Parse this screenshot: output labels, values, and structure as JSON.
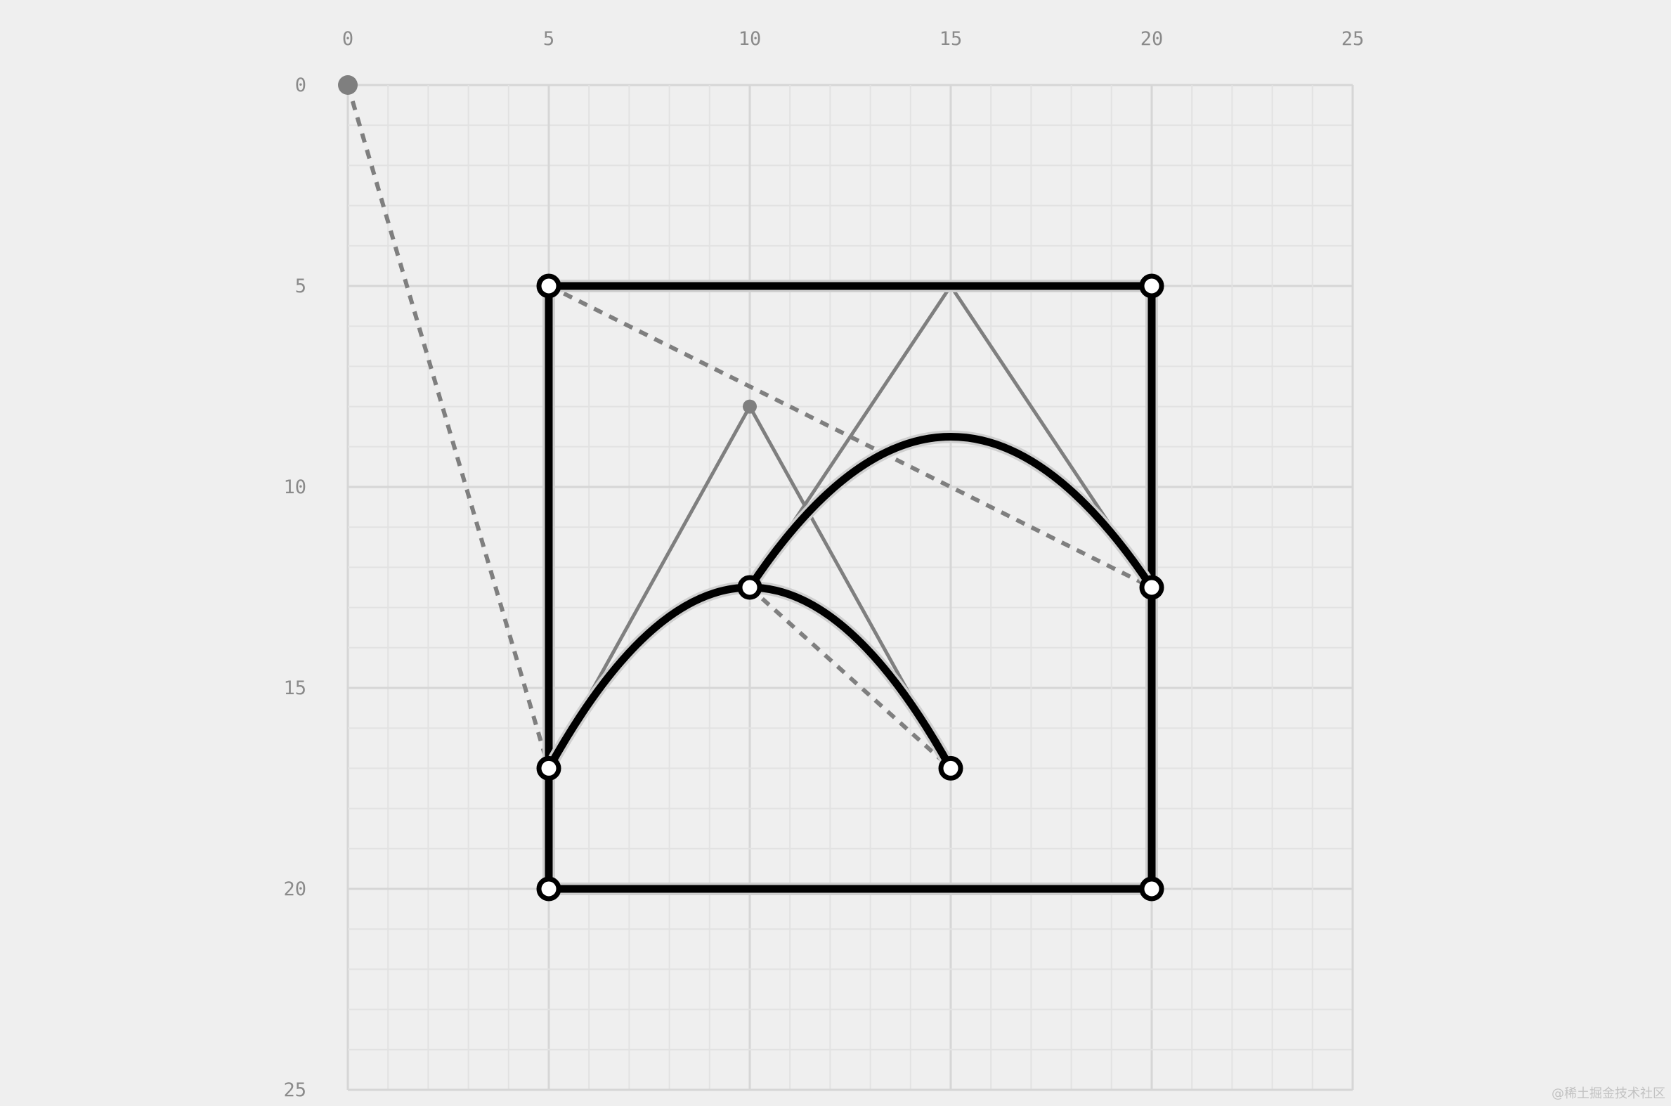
{
  "diagram": {
    "axis": {
      "min": 0,
      "max": 25,
      "major_step": 5,
      "minor_step": 1,
      "x_ticks": [
        "0",
        "5",
        "10",
        "15",
        "20",
        "25"
      ],
      "y_ticks": [
        "0",
        "5",
        "10",
        "15",
        "20",
        "25"
      ]
    },
    "colors": {
      "background": "#efefef",
      "minor_grid": "#e2e2e2",
      "major_grid": "#d6d6d6",
      "main_stroke": "#000000",
      "helper_stroke": "#7f7f7f",
      "dot_fill": "#7f7f7f",
      "handle_fill": "#ffffff"
    },
    "square": [
      [
        5,
        5
      ],
      [
        20,
        5
      ],
      [
        20,
        20
      ],
      [
        5,
        20
      ]
    ],
    "dashed_paths": [
      [
        [
          0,
          0
        ],
        [
          5,
          17
        ]
      ],
      [
        [
          5,
          5
        ],
        [
          20,
          12.5
        ]
      ],
      [
        [
          10,
          12.5
        ],
        [
          15,
          17
        ]
      ]
    ],
    "helper_polylines": [
      [
        [
          5,
          17
        ],
        [
          10,
          8
        ],
        [
          15,
          17
        ]
      ],
      [
        [
          10,
          12.5
        ],
        [
          15,
          5
        ],
        [
          20,
          12.5
        ]
      ]
    ],
    "curves": [
      {
        "from": [
          5,
          17
        ],
        "control": [
          10,
          8
        ],
        "to": [
          15,
          17
        ]
      },
      {
        "from": [
          10,
          12.5
        ],
        "control": [
          15,
          5
        ],
        "to": [
          20,
          12.5
        ]
      }
    ],
    "solid_dots": [
      [
        0,
        0
      ],
      [
        10,
        8
      ]
    ],
    "handles": [
      [
        5,
        5
      ],
      [
        20,
        5
      ],
      [
        20,
        20
      ],
      [
        5,
        20
      ],
      [
        5,
        17
      ],
      [
        15,
        17
      ],
      [
        10,
        12.5
      ],
      [
        20,
        12.5
      ]
    ]
  },
  "watermark": "@稀土掘金技术社区"
}
